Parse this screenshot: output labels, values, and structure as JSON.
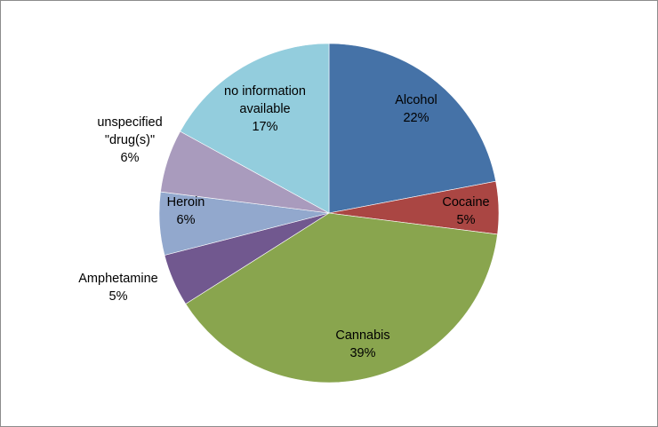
{
  "chart_data": {
    "type": "pie",
    "slices": [
      {
        "label_lines": [
          "Alcohol"
        ],
        "percent_label": "22%",
        "value": 22,
        "color": "#4572A7"
      },
      {
        "label_lines": [
          "Cocaine"
        ],
        "percent_label": "5%",
        "value": 5,
        "color": "#AA4643"
      },
      {
        "label_lines": [
          "Cannabis"
        ],
        "percent_label": "39%",
        "value": 39,
        "color": "#89A54E"
      },
      {
        "label_lines": [
          "Amphetamine"
        ],
        "percent_label": "5%",
        "value": 5,
        "color": "#71588F"
      },
      {
        "label_lines": [
          "Heroin"
        ],
        "percent_label": "6%",
        "value": 6,
        "color": "#92A8CD"
      },
      {
        "label_lines": [
          "unspecified",
          "\"drug(s)\""
        ],
        "percent_label": "6%",
        "value": 6,
        "color": "#A99BBD"
      },
      {
        "label_lines": [
          "no information",
          "available"
        ],
        "percent_label": "17%",
        "value": 17,
        "color": "#93CDDD"
      }
    ],
    "start_angle_deg": 0,
    "direction": "clockwise",
    "title": "",
    "legend": "none"
  }
}
